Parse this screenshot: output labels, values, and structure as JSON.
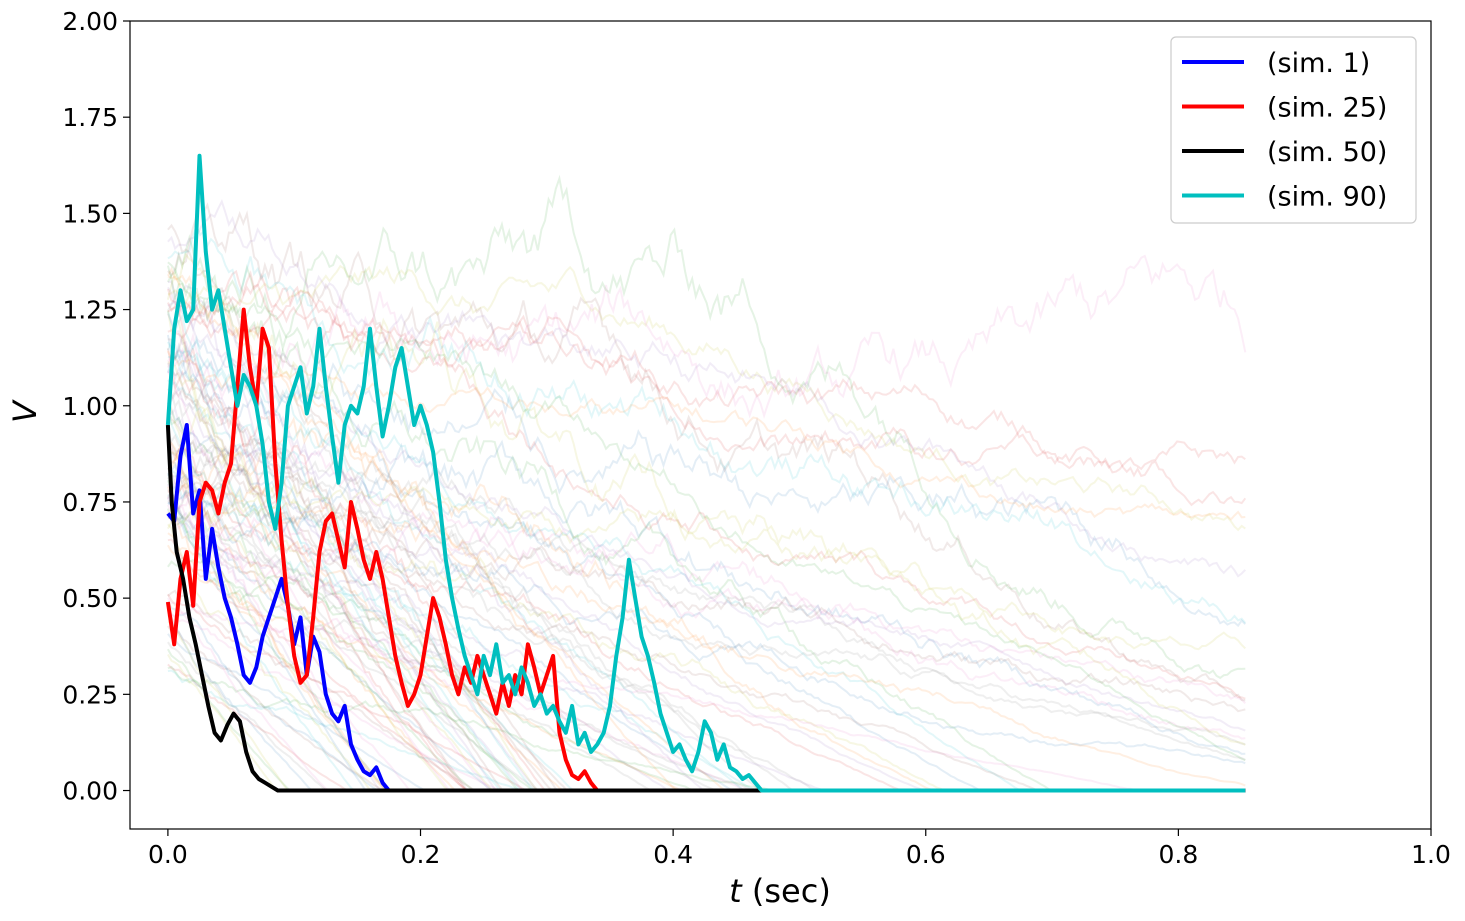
{
  "chart_data": {
    "type": "line",
    "title": "",
    "xlabel": {
      "italic": "t",
      "rest": " (sec)"
    },
    "ylabel": "V",
    "xlim": [
      -0.03,
      1.0
    ],
    "ylim": [
      -0.1,
      2.0
    ],
    "xticks": [
      {
        "value": 0.0,
        "label": "0.0"
      },
      {
        "value": 0.2,
        "label": "0.2"
      },
      {
        "value": 0.4,
        "label": "0.4"
      },
      {
        "value": 0.6,
        "label": "0.6"
      },
      {
        "value": 0.8,
        "label": "0.8"
      },
      {
        "value": 1.0,
        "label": "1.0"
      }
    ],
    "yticks": [
      {
        "value": 0.0,
        "label": "0.00"
      },
      {
        "value": 0.25,
        "label": "0.25"
      },
      {
        "value": 0.5,
        "label": "0.50"
      },
      {
        "value": 0.75,
        "label": "0.75"
      },
      {
        "value": 1.0,
        "label": "1.00"
      },
      {
        "value": 1.25,
        "label": "1.25"
      },
      {
        "value": 1.5,
        "label": "1.50"
      },
      {
        "value": 1.75,
        "label": "1.75"
      },
      {
        "value": 2.0,
        "label": "2.00"
      }
    ],
    "grid": false,
    "legend_position": "top-right",
    "background_traces": {
      "count": 100,
      "t_end": 0.853,
      "opacity": 0.12,
      "colors": [
        "#1f77b4",
        "#ff7f0e",
        "#2ca02c",
        "#d62728",
        "#9467bd",
        "#8c564b",
        "#e377c2",
        "#7f7f7f",
        "#bcbd22",
        "#17becf"
      ]
    },
    "series": [
      {
        "name": "(sim. 1)",
        "color": "#0000ff",
        "points": [
          [
            0.0,
            0.72
          ],
          [
            0.005,
            0.7
          ],
          [
            0.01,
            0.87
          ],
          [
            0.015,
            0.95
          ],
          [
            0.02,
            0.72
          ],
          [
            0.025,
            0.78
          ],
          [
            0.03,
            0.55
          ],
          [
            0.035,
            0.68
          ],
          [
            0.04,
            0.58
          ],
          [
            0.045,
            0.5
          ],
          [
            0.05,
            0.45
          ],
          [
            0.055,
            0.38
          ],
          [
            0.06,
            0.3
          ],
          [
            0.065,
            0.28
          ],
          [
            0.07,
            0.32
          ],
          [
            0.075,
            0.4
          ],
          [
            0.08,
            0.45
          ],
          [
            0.085,
            0.5
          ],
          [
            0.09,
            0.55
          ],
          [
            0.095,
            0.48
          ],
          [
            0.1,
            0.38
          ],
          [
            0.105,
            0.45
          ],
          [
            0.11,
            0.3
          ],
          [
            0.115,
            0.4
          ],
          [
            0.12,
            0.36
          ],
          [
            0.125,
            0.25
          ],
          [
            0.13,
            0.2
          ],
          [
            0.135,
            0.18
          ],
          [
            0.14,
            0.22
          ],
          [
            0.145,
            0.12
          ],
          [
            0.15,
            0.08
          ],
          [
            0.155,
            0.05
          ],
          [
            0.16,
            0.04
          ],
          [
            0.165,
            0.06
          ],
          [
            0.17,
            0.02
          ],
          [
            0.175,
            0.0
          ],
          [
            0.853,
            0.0
          ]
        ]
      },
      {
        "name": "(sim. 25)",
        "color": "#ff0000",
        "points": [
          [
            0.0,
            0.49
          ],
          [
            0.005,
            0.38
          ],
          [
            0.01,
            0.55
          ],
          [
            0.015,
            0.62
          ],
          [
            0.02,
            0.48
          ],
          [
            0.025,
            0.75
          ],
          [
            0.03,
            0.8
          ],
          [
            0.035,
            0.78
          ],
          [
            0.04,
            0.72
          ],
          [
            0.045,
            0.8
          ],
          [
            0.05,
            0.85
          ],
          [
            0.055,
            1.05
          ],
          [
            0.06,
            1.25
          ],
          [
            0.065,
            1.1
          ],
          [
            0.07,
            1.0
          ],
          [
            0.075,
            1.2
          ],
          [
            0.08,
            1.15
          ],
          [
            0.085,
            0.85
          ],
          [
            0.09,
            0.65
          ],
          [
            0.095,
            0.48
          ],
          [
            0.1,
            0.35
          ],
          [
            0.105,
            0.28
          ],
          [
            0.11,
            0.3
          ],
          [
            0.115,
            0.45
          ],
          [
            0.12,
            0.62
          ],
          [
            0.125,
            0.7
          ],
          [
            0.13,
            0.72
          ],
          [
            0.135,
            0.65
          ],
          [
            0.14,
            0.58
          ],
          [
            0.145,
            0.75
          ],
          [
            0.15,
            0.68
          ],
          [
            0.155,
            0.6
          ],
          [
            0.16,
            0.55
          ],
          [
            0.165,
            0.62
          ],
          [
            0.17,
            0.55
          ],
          [
            0.175,
            0.45
          ],
          [
            0.18,
            0.35
          ],
          [
            0.185,
            0.28
          ],
          [
            0.19,
            0.22
          ],
          [
            0.195,
            0.25
          ],
          [
            0.2,
            0.3
          ],
          [
            0.205,
            0.4
          ],
          [
            0.21,
            0.5
          ],
          [
            0.215,
            0.45
          ],
          [
            0.22,
            0.38
          ],
          [
            0.225,
            0.3
          ],
          [
            0.23,
            0.25
          ],
          [
            0.235,
            0.32
          ],
          [
            0.24,
            0.28
          ],
          [
            0.245,
            0.35
          ],
          [
            0.25,
            0.3
          ],
          [
            0.255,
            0.25
          ],
          [
            0.26,
            0.2
          ],
          [
            0.265,
            0.28
          ],
          [
            0.27,
            0.22
          ],
          [
            0.275,
            0.3
          ],
          [
            0.28,
            0.25
          ],
          [
            0.285,
            0.38
          ],
          [
            0.29,
            0.32
          ],
          [
            0.295,
            0.25
          ],
          [
            0.3,
            0.3
          ],
          [
            0.305,
            0.35
          ],
          [
            0.31,
            0.15
          ],
          [
            0.315,
            0.08
          ],
          [
            0.32,
            0.04
          ],
          [
            0.325,
            0.03
          ],
          [
            0.33,
            0.05
          ],
          [
            0.335,
            0.02
          ],
          [
            0.34,
            0.0
          ],
          [
            0.853,
            0.0
          ]
        ]
      },
      {
        "name": "(sim. 50)",
        "color": "#000000",
        "points": [
          [
            0.0,
            0.95
          ],
          [
            0.003,
            0.75
          ],
          [
            0.007,
            0.62
          ],
          [
            0.012,
            0.55
          ],
          [
            0.017,
            0.45
          ],
          [
            0.022,
            0.38
          ],
          [
            0.027,
            0.3
          ],
          [
            0.032,
            0.22
          ],
          [
            0.037,
            0.15
          ],
          [
            0.042,
            0.13
          ],
          [
            0.047,
            0.17
          ],
          [
            0.052,
            0.2
          ],
          [
            0.057,
            0.18
          ],
          [
            0.062,
            0.1
          ],
          [
            0.067,
            0.05
          ],
          [
            0.072,
            0.03
          ],
          [
            0.077,
            0.02
          ],
          [
            0.082,
            0.01
          ],
          [
            0.087,
            0.0
          ],
          [
            0.853,
            0.0
          ]
        ]
      },
      {
        "name": "(sim. 90)",
        "color": "#00bfbf",
        "points": [
          [
            0.0,
            0.95
          ],
          [
            0.005,
            1.2
          ],
          [
            0.01,
            1.3
          ],
          [
            0.015,
            1.22
          ],
          [
            0.02,
            1.25
          ],
          [
            0.025,
            1.65
          ],
          [
            0.03,
            1.4
          ],
          [
            0.035,
            1.25
          ],
          [
            0.04,
            1.3
          ],
          [
            0.045,
            1.2
          ],
          [
            0.05,
            1.1
          ],
          [
            0.055,
            1.0
          ],
          [
            0.06,
            1.08
          ],
          [
            0.065,
            1.05
          ],
          [
            0.07,
            1.0
          ],
          [
            0.075,
            0.9
          ],
          [
            0.08,
            0.75
          ],
          [
            0.085,
            0.68
          ],
          [
            0.09,
            0.8
          ],
          [
            0.095,
            1.0
          ],
          [
            0.1,
            1.05
          ],
          [
            0.105,
            1.1
          ],
          [
            0.11,
            0.98
          ],
          [
            0.115,
            1.05
          ],
          [
            0.12,
            1.2
          ],
          [
            0.125,
            1.05
          ],
          [
            0.13,
            0.92
          ],
          [
            0.135,
            0.8
          ],
          [
            0.14,
            0.95
          ],
          [
            0.145,
            1.0
          ],
          [
            0.15,
            0.98
          ],
          [
            0.155,
            1.05
          ],
          [
            0.16,
            1.2
          ],
          [
            0.165,
            1.05
          ],
          [
            0.17,
            0.92
          ],
          [
            0.175,
            1.0
          ],
          [
            0.18,
            1.1
          ],
          [
            0.185,
            1.15
          ],
          [
            0.19,
            1.05
          ],
          [
            0.195,
            0.95
          ],
          [
            0.2,
            1.0
          ],
          [
            0.205,
            0.95
          ],
          [
            0.21,
            0.88
          ],
          [
            0.215,
            0.75
          ],
          [
            0.22,
            0.6
          ],
          [
            0.225,
            0.5
          ],
          [
            0.23,
            0.42
          ],
          [
            0.235,
            0.35
          ],
          [
            0.24,
            0.3
          ],
          [
            0.245,
            0.25
          ],
          [
            0.25,
            0.35
          ],
          [
            0.255,
            0.3
          ],
          [
            0.26,
            0.38
          ],
          [
            0.265,
            0.28
          ],
          [
            0.27,
            0.3
          ],
          [
            0.275,
            0.25
          ],
          [
            0.28,
            0.32
          ],
          [
            0.285,
            0.28
          ],
          [
            0.29,
            0.22
          ],
          [
            0.295,
            0.25
          ],
          [
            0.3,
            0.2
          ],
          [
            0.305,
            0.22
          ],
          [
            0.31,
            0.18
          ],
          [
            0.315,
            0.15
          ],
          [
            0.32,
            0.22
          ],
          [
            0.325,
            0.12
          ],
          [
            0.33,
            0.15
          ],
          [
            0.335,
            0.1
          ],
          [
            0.34,
            0.12
          ],
          [
            0.345,
            0.15
          ],
          [
            0.35,
            0.22
          ],
          [
            0.355,
            0.35
          ],
          [
            0.36,
            0.45
          ],
          [
            0.365,
            0.6
          ],
          [
            0.37,
            0.5
          ],
          [
            0.375,
            0.4
          ],
          [
            0.38,
            0.35
          ],
          [
            0.385,
            0.28
          ],
          [
            0.39,
            0.2
          ],
          [
            0.395,
            0.15
          ],
          [
            0.4,
            0.1
          ],
          [
            0.405,
            0.12
          ],
          [
            0.41,
            0.08
          ],
          [
            0.415,
            0.05
          ],
          [
            0.42,
            0.1
          ],
          [
            0.425,
            0.18
          ],
          [
            0.43,
            0.15
          ],
          [
            0.435,
            0.08
          ],
          [
            0.44,
            0.12
          ],
          [
            0.445,
            0.06
          ],
          [
            0.45,
            0.05
          ],
          [
            0.455,
            0.03
          ],
          [
            0.46,
            0.04
          ],
          [
            0.465,
            0.02
          ],
          [
            0.47,
            0.0
          ],
          [
            0.853,
            0.0
          ]
        ]
      }
    ]
  }
}
